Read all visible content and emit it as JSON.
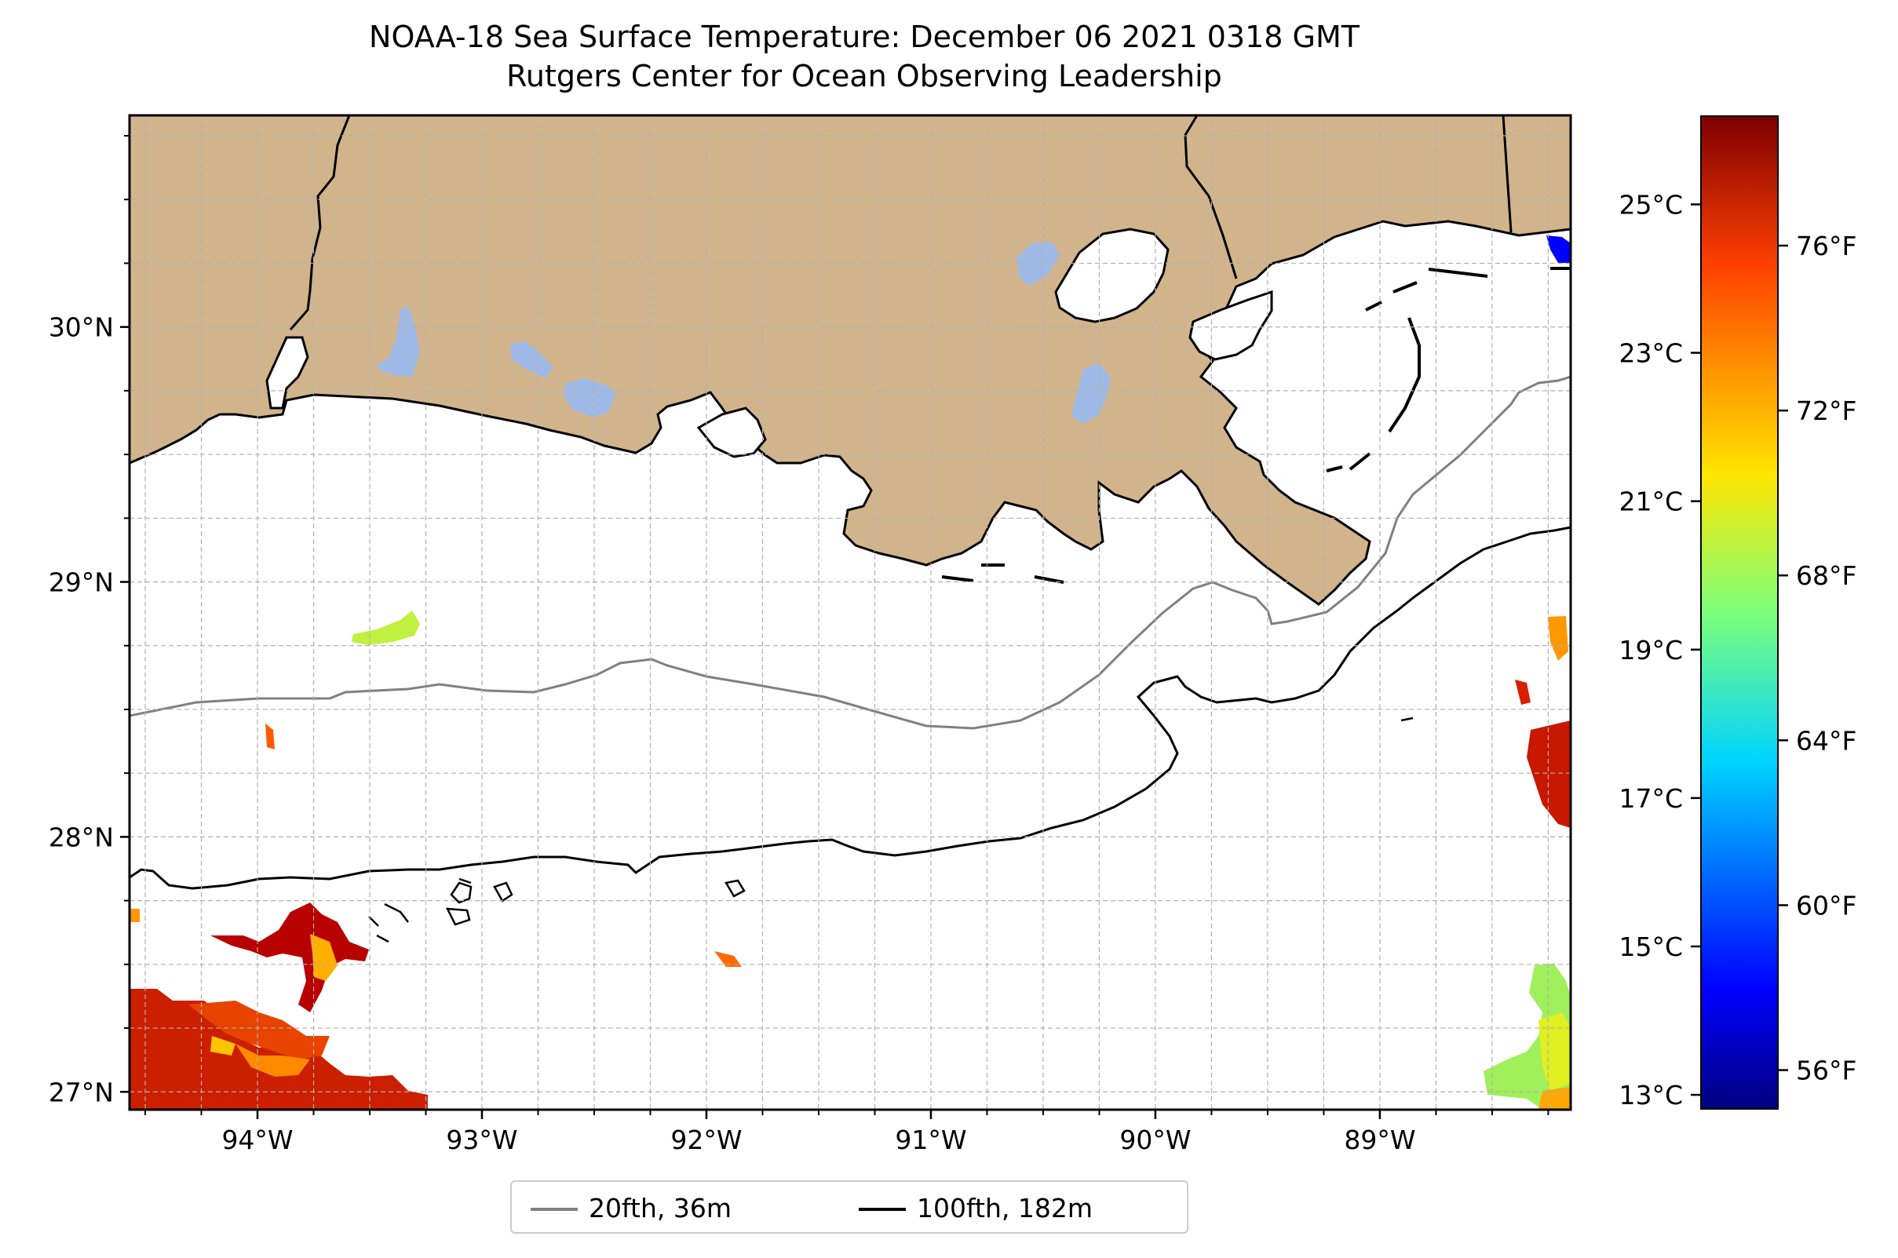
{
  "title": {
    "line1": "NOAA-18 Sea Surface Temperature: December 06 2021 0318 GMT",
    "line2": "Rutgers Center for Ocean Observing Leadership"
  },
  "map": {
    "lon_range": [
      -94.57,
      -88.15
    ],
    "lat_range": [
      26.93,
      30.83
    ],
    "lat_ticks": [
      {
        "value": 30,
        "label": "30°N"
      },
      {
        "value": 29,
        "label": "29°N"
      },
      {
        "value": 28,
        "label": "28°N"
      },
      {
        "value": 27,
        "label": "27°N"
      }
    ],
    "lon_ticks": [
      {
        "value": -94,
        "label": "94°W"
      },
      {
        "value": -93,
        "label": "93°W"
      },
      {
        "value": -92,
        "label": "92°W"
      },
      {
        "value": -91,
        "label": "91°W"
      },
      {
        "value": -90,
        "label": "90°W"
      },
      {
        "value": -89,
        "label": "89°W"
      }
    ],
    "gridlines": true,
    "land_color": "#d2b48c",
    "lake_color": "#9eb9e5"
  },
  "legend": {
    "entries": [
      {
        "label": "20fth, 36m",
        "color": "#808080"
      },
      {
        "label": "100fth, 182m",
        "color": "#000000"
      }
    ],
    "placement": "bottom-center"
  },
  "colorbar": {
    "cmap": "jet",
    "celsius_range": [
      12.8,
      26.2
    ],
    "celsius_ticks": [
      {
        "value": 25,
        "label": "25°C"
      },
      {
        "value": 23,
        "label": "23°C"
      },
      {
        "value": 21,
        "label": "21°C"
      },
      {
        "value": 19,
        "label": "19°C"
      },
      {
        "value": 17,
        "label": "17°C"
      },
      {
        "value": 15,
        "label": "15°C"
      },
      {
        "value": 13,
        "label": "13°C"
      }
    ],
    "fahrenheit_ticks": [
      {
        "value": 76,
        "label": "76°F"
      },
      {
        "value": 72,
        "label": "72°F"
      },
      {
        "value": 68,
        "label": "68°F"
      },
      {
        "value": 64,
        "label": "64°F"
      },
      {
        "value": 60,
        "label": "60°F"
      },
      {
        "value": 56,
        "label": "56°F"
      }
    ]
  }
}
